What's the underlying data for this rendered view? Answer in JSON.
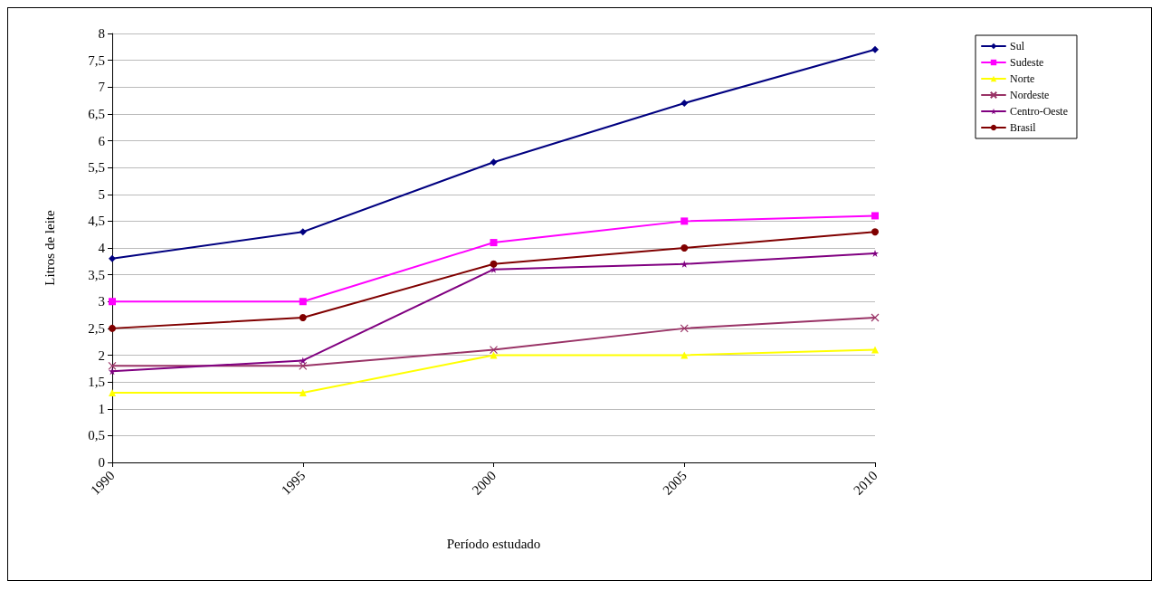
{
  "chart_data": {
    "type": "line",
    "xlabel": "Período estudado",
    "ylabel": "Litros de leite",
    "categories": [
      "1990",
      "1995",
      "2000",
      "2005",
      "2010"
    ],
    "series": [
      {
        "name": "Sul",
        "color": "#000080",
        "marker": "diamond",
        "values": [
          3.8,
          4.3,
          5.6,
          6.7,
          7.7
        ]
      },
      {
        "name": "Sudeste",
        "color": "#ff00ff",
        "marker": "square",
        "values": [
          3.0,
          3.0,
          4.1,
          4.5,
          4.6
        ]
      },
      {
        "name": "Norte",
        "color": "#ffff00",
        "marker": "triangle",
        "values": [
          1.3,
          1.3,
          2.0,
          2.0,
          2.1
        ]
      },
      {
        "name": "Nordeste",
        "color": "#993366",
        "marker": "cross",
        "values": [
          1.8,
          1.8,
          2.1,
          2.5,
          2.7
        ]
      },
      {
        "name": "Centro-Oeste",
        "color": "#800080",
        "marker": "star",
        "values": [
          1.7,
          1.9,
          3.6,
          3.7,
          3.9
        ]
      },
      {
        "name": "Brasil",
        "color": "#800000",
        "marker": "circle",
        "values": [
          2.5,
          2.7,
          3.7,
          4.0,
          4.3
        ]
      }
    ],
    "ylim": [
      0,
      8
    ],
    "yticks": [
      0,
      {
        "value": 0.5,
        "label": "0,5"
      },
      1,
      {
        "value": 1.5,
        "label": "1,5"
      },
      2,
      {
        "value": 2.5,
        "label": "2,5"
      },
      3,
      {
        "value": 3.5,
        "label": "3,5"
      },
      4,
      {
        "value": 4.5,
        "label": "4,5"
      },
      5,
      {
        "value": 5.5,
        "label": "5,5"
      },
      6,
      {
        "value": 6.5,
        "label": "6,5"
      },
      7,
      {
        "value": 7.5,
        "label": "7,5"
      },
      8
    ],
    "grid": "y",
    "legend": "top right",
    "line_style": "solid"
  }
}
